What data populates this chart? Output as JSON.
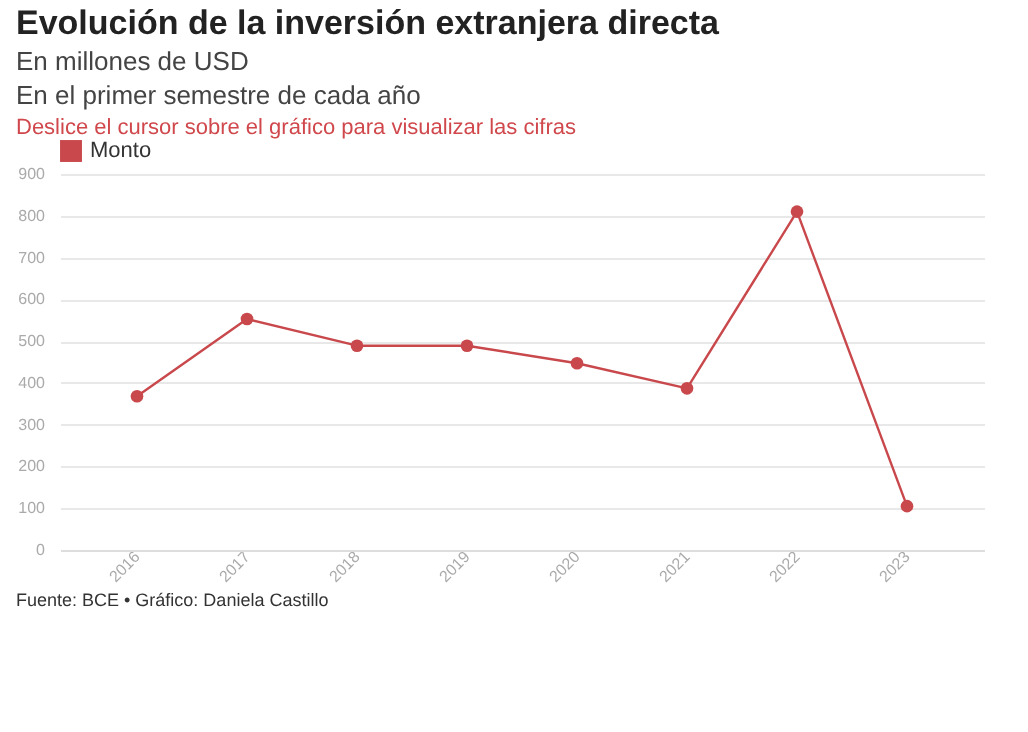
{
  "chart_data": {
    "type": "line",
    "title": "Evolución de la inversión extranjera directa",
    "subtitle": "En millones de USD\nEn el primer semestre de cada año",
    "annotations": [
      "Deslice el cursor sobre el gráfico para visualizar las cifras",
      "Fuente: BCE • Gráfico: Daniela Castillo"
    ],
    "categories": [
      "2016",
      "2017",
      "2018",
      "2019",
      "2020",
      "2021",
      "2022",
      "2023"
    ],
    "series": [
      {
        "name": "Monto",
        "color": "#c8484c",
        "values": [
          368,
          553,
          489,
          489,
          447,
          387,
          810,
          105
        ]
      }
    ],
    "ylim": [
      0,
      900
    ],
    "yticks": [
      0,
      100,
      200,
      300,
      400,
      500,
      600,
      700,
      800,
      900
    ],
    "grid": "y",
    "legend": "top left",
    "marker": "circle",
    "line_style": "solid"
  }
}
